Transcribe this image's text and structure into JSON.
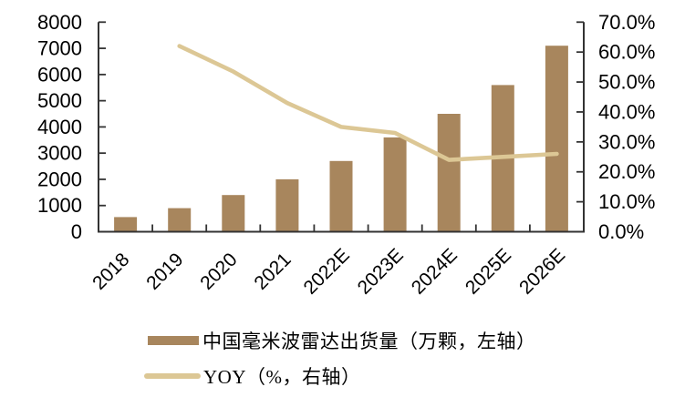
{
  "chart_data": {
    "type": "bar+line",
    "title": "",
    "categories": [
      "2018",
      "2019",
      "2020",
      "2021",
      "2022E",
      "2023E",
      "2024E",
      "2025E",
      "2026E"
    ],
    "series": [
      {
        "name": "中国毫米波雷达出货量（万颗，左轴）",
        "type": "bar",
        "axis": "left",
        "color": "#A8865D",
        "values": [
          560,
          900,
          1400,
          2000,
          2700,
          3600,
          4500,
          5600,
          7100
        ]
      },
      {
        "name": "YOY（%，右轴）",
        "type": "line",
        "axis": "right",
        "color": "#DCC795",
        "values": [
          null,
          62.0,
          53.5,
          43.0,
          35.0,
          33.0,
          24.0,
          25.0,
          26.0
        ]
      }
    ],
    "left_axis": {
      "min": 0,
      "max": 8000,
      "step": 1000,
      "tick_labels": [
        "0",
        "1000",
        "2000",
        "3000",
        "4000",
        "5000",
        "6000",
        "7000",
        "8000"
      ]
    },
    "right_axis": {
      "min": 0,
      "max": 70,
      "step": 10,
      "tick_labels": [
        "0.0%",
        "10.0%",
        "20.0%",
        "30.0%",
        "40.0%",
        "50.0%",
        "60.0%",
        "70.0%"
      ]
    },
    "grid": false,
    "legend_position": "bottom-left",
    "axis_color": "#333333",
    "text_color": "#000000"
  }
}
